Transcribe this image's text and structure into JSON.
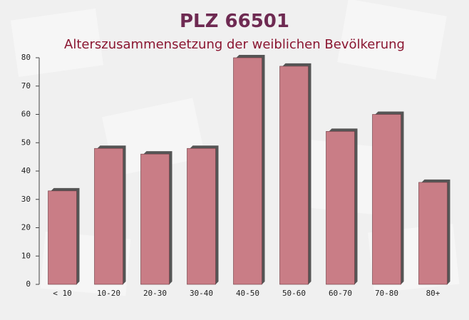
{
  "chart_data": {
    "type": "bar",
    "title": "PLZ 66501",
    "subtitle": "Alterszusammensetzung der weiblichen Bevölkerung",
    "categories": [
      "< 10",
      "10-20",
      "20-30",
      "30-40",
      "40-50",
      "50-60",
      "60-70",
      "70-80",
      "80+"
    ],
    "values": [
      33,
      48,
      46,
      48,
      80,
      77,
      54,
      60,
      36
    ],
    "color": "#c4707a",
    "ylim": [
      0,
      80
    ],
    "yticks": [
      0,
      10,
      20,
      30,
      40,
      50,
      60,
      70,
      80
    ],
    "grid": false
  }
}
